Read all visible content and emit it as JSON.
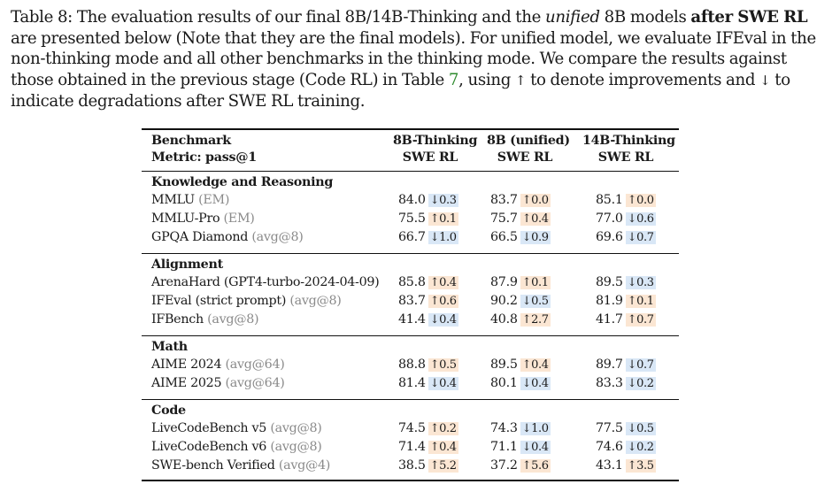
{
  "caption": {
    "t1": "Table 8: The evaluation results of our final 8B/14B-Thinking and the ",
    "t2": "unified",
    "t3": " 8B models ",
    "t4": "after SWE RL",
    "t5": " are presented below (Note that they are the final models). For unified model, we evaluate IFEval in the non-thinking mode and all other benchmarks in the thinking mode. We compare the results against those obtained in the previous stage (Code RL) in Table ",
    "t6": "7",
    "t7": ", using ",
    "t8": "↑",
    "t9": " to denote improvements and ",
    "t10": "↓",
    "t11": " to indicate degradations after SWE RL training."
  },
  "header": {
    "col0_line1": "Benchmark",
    "col0_line2": "Metric: pass@1",
    "col1_line1": "8B-Thinking",
    "col1_line2": "SWE RL",
    "col2_line1": "8B (unified)",
    "col2_line2": "SWE RL",
    "col3_line1": "14B-Thinking",
    "col3_line2": "SWE RL"
  },
  "sections": [
    {
      "title": "Knowledge and Reasoning",
      "rows": [
        {
          "name": "MMLU",
          "metric": "(EM)",
          "c": [
            [
              "84.0",
              "↓0.3",
              "down"
            ],
            [
              "83.7",
              "↑0.0",
              "up"
            ],
            [
              "85.1",
              "↑0.0",
              "up"
            ]
          ]
        },
        {
          "name": "MMLU-Pro",
          "metric": "(EM)",
          "c": [
            [
              "75.5",
              "↑0.1",
              "up"
            ],
            [
              "75.7",
              "↑0.4",
              "up"
            ],
            [
              "77.0",
              "↓0.6",
              "down"
            ]
          ]
        },
        {
          "name": "GPQA Diamond",
          "metric": "(avg@8)",
          "c": [
            [
              "66.7",
              "↓1.0",
              "down"
            ],
            [
              "66.5",
              "↓0.9",
              "down"
            ],
            [
              "69.6",
              "↓0.7",
              "down"
            ]
          ]
        }
      ]
    },
    {
      "title": "Alignment",
      "rows": [
        {
          "name": "ArenaHard (GPT4-turbo-2024-04-09)",
          "metric": "",
          "c": [
            [
              "85.8",
              "↑0.4",
              "up"
            ],
            [
              "87.9",
              "↑0.1",
              "up"
            ],
            [
              "89.5",
              "↓0.3",
              "down"
            ]
          ]
        },
        {
          "name": "IFEval (strict prompt)",
          "metric": "(avg@8)",
          "c": [
            [
              "83.7",
              "↑0.6",
              "up"
            ],
            [
              "90.2",
              "↓0.5",
              "down"
            ],
            [
              "81.9",
              "↑0.1",
              "up"
            ]
          ]
        },
        {
          "name": "IFBench",
          "metric": "(avg@8)",
          "c": [
            [
              "41.4",
              "↓0.4",
              "down"
            ],
            [
              "40.8",
              "↑2.7",
              "up"
            ],
            [
              "41.7",
              "↑0.7",
              "up"
            ]
          ]
        }
      ]
    },
    {
      "title": "Math",
      "rows": [
        {
          "name": "AIME 2024",
          "metric": "(avg@64)",
          "c": [
            [
              "88.8",
              "↑0.5",
              "up"
            ],
            [
              "89.5",
              "↑0.4",
              "up"
            ],
            [
              "89.7",
              "↓0.7",
              "down"
            ]
          ]
        },
        {
          "name": "AIME 2025",
          "metric": "(avg@64)",
          "c": [
            [
              "81.4",
              "↓0.4",
              "down"
            ],
            [
              "80.1",
              "↓0.4",
              "down"
            ],
            [
              "83.3",
              "↓0.2",
              "down"
            ]
          ]
        }
      ]
    },
    {
      "title": "Code",
      "rows": [
        {
          "name": "LiveCodeBench v5",
          "metric": "(avg@8)",
          "c": [
            [
              "74.5",
              "↑0.2",
              "up"
            ],
            [
              "74.3",
              "↓1.0",
              "down"
            ],
            [
              "77.5",
              "↓0.5",
              "down"
            ]
          ]
        },
        {
          "name": "LiveCodeBench v6",
          "metric": "(avg@8)",
          "c": [
            [
              "71.4",
              "↑0.4",
              "up"
            ],
            [
              "71.1",
              "↓0.4",
              "down"
            ],
            [
              "74.6",
              "↓0.2",
              "down"
            ]
          ]
        },
        {
          "name": "SWE-bench Verified",
          "metric": "(avg@4)",
          "c": [
            [
              "38.5",
              "↑5.2",
              "up"
            ],
            [
              "37.2",
              "↑5.6",
              "up"
            ],
            [
              "43.1",
              "↑3.5",
              "up"
            ]
          ]
        }
      ]
    }
  ],
  "colors": {
    "up_bg": "#fbe6d3",
    "down_bg": "#d9e7f6",
    "ref_link": "#2e8b2e",
    "metric_grey": "#8a8a8a"
  }
}
